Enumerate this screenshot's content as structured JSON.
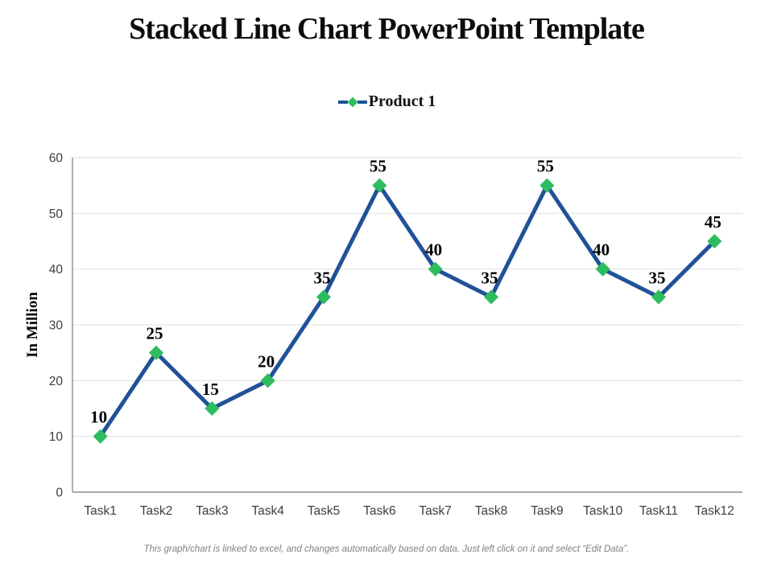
{
  "title": "Stacked Line Chart PowerPoint Template",
  "legend": {
    "label": "Product 1"
  },
  "chart_data": {
    "type": "line",
    "title": "Stacked Line Chart PowerPoint Template",
    "categories": [
      "Task1",
      "Task2",
      "Task3",
      "Task4",
      "Task5",
      "Task6",
      "Task7",
      "Task8",
      "Task9",
      "Task10",
      "Task11",
      "Task12"
    ],
    "series": [
      {
        "name": "Product 1",
        "values": [
          10,
          25,
          15,
          20,
          35,
          55,
          40,
          35,
          55,
          40,
          35,
          45
        ]
      }
    ],
    "xlabel": "",
    "ylabel": "In Million",
    "ylim": [
      0,
      60
    ],
    "yticks": [
      0,
      10,
      20,
      30,
      40,
      50,
      60
    ],
    "grid": true,
    "legend_position": "top",
    "marker": "diamond",
    "data_labels": true
  },
  "colors": {
    "line": "#1F5296",
    "marker": "#2EBD5E",
    "grid": "#E9E9E9",
    "axis": "#8C8C8C",
    "tick_label": "#3D3D3D",
    "data_label": "#000000",
    "title_text": "#0D0D0D",
    "footer_text": "#808080"
  },
  "footer": {
    "note": "This graph/chart is linked to excel, and changes automatically based on data. Just left click on it and select “Edit Data”."
  }
}
